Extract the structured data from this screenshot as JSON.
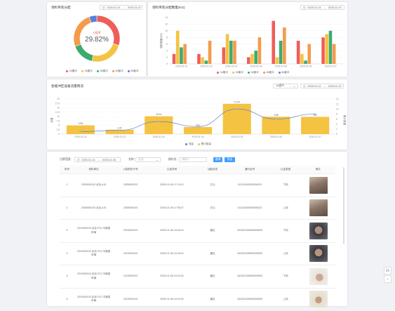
{
  "pie_card": {
    "title": "领料吊装分配",
    "date_start": "2025-01-01",
    "date_sep": "—",
    "date_end": "2025-01-07",
    "center_label": "分配率",
    "center_value": "29.82%",
    "legend": [
      "1#缓冲",
      "2#缓冲",
      "3#缓冲",
      "4#缓冲",
      "5#缓冲"
    ],
    "colors": [
      "#ee5f5b",
      "#f5c342",
      "#3eab6e",
      "#f49b4a",
      "#5a7fd6"
    ]
  },
  "bar_card": {
    "title": "领料吊装分配数量(KG)",
    "date_start": "2025-01-01",
    "date_sep": "—",
    "date_end": "2025-01-07",
    "ylabel": "领料数量(KG)"
  },
  "line_card": {
    "title": "各缓冲区设备流量情况",
    "select_value": "1#缓冲",
    "date_start": "2025-01-01",
    "date_sep": "—",
    "date_end": "2025-01-07",
    "y_left_label": "流量",
    "y_right_label": "累计数量"
  },
  "filter": {
    "range_label": "日期范围：",
    "date_start": "2025-01-01",
    "date_sep": "—",
    "date_end": "2025-01-08",
    "name_label": "名称：",
    "name_placeholder": "全部",
    "person_label": "操作员：",
    "person_placeholder": "请输入",
    "search_btn": "查询",
    "export_btn": "导出"
  },
  "table": {
    "headers": [
      "序号",
      "领料单位",
      "人脸抓拍卡号",
      "认证时间",
      "功能状态",
      "通行证号",
      "认证类型",
      "照片"
    ],
    "rows": [
      {
        "no": "1",
        "unit": "2305000103 北京 p15",
        "card": "2305000103",
        "time": "2025-01-05 17:14:13",
        "status": "已认",
        "pass": "111111000000006322",
        "type": "下岗",
        "photo": "a"
      },
      {
        "no": "2",
        "unit": "2305000103 北京 p15",
        "card": "2305000103",
        "time": "2025-01-05 17:05:27",
        "status": "已认",
        "pass": "111111000000006322",
        "type": "上岗",
        "photo": "a"
      },
      {
        "no": "3",
        "unit": "2310000103 北京-P12 平衡梁车辆",
        "card": "2310000103",
        "time": "2025-01-06 10:40:14",
        "status": "通过",
        "pass": "342422199605026993",
        "type": "下岗",
        "photo": "b"
      },
      {
        "no": "4",
        "unit": "2310000103 北京-P12 平衡梁车辆",
        "card": "2310000103",
        "time": "2025-01-06 10:40:14",
        "status": "通过",
        "pass": "342422199605026993",
        "type": "上岗",
        "photo": "b"
      },
      {
        "no": "5",
        "unit": "2310000103 北京-P12 平衡梁车辆",
        "card": "2310000103",
        "time": "2025-01-06 10:10:32",
        "status": "通过",
        "pass": "342422199605026993",
        "type": "下岗",
        "photo": "c"
      },
      {
        "no": "6",
        "unit": "2310000103 北京-P12 平衡梁车辆",
        "card": "2310000103",
        "time": "2025-01-06 10:10:32",
        "status": "通过",
        "pass": "342422199605026993",
        "type": "上岗",
        "photo": "d"
      }
    ]
  },
  "chart_data": [
    {
      "type": "pie",
      "title": "领料吊装分配",
      "categories": [
        "1#缓冲",
        "2#缓冲",
        "3#缓冲",
        "4#缓冲",
        "5#缓冲"
      ],
      "values": [
        29.82,
        23.5,
        16.2,
        25.1,
        5.38
      ]
    },
    {
      "type": "bar",
      "title": "领料吊装分配数量(KG)",
      "categories": [
        "2025-01-01",
        "2025-01-02",
        "2025-01-03",
        "2025-01-04",
        "2025-01-05",
        "2025-01-06",
        "2025-01-07"
      ],
      "ylabel": "领料数量(KG)",
      "ylim": [
        0,
        14
      ],
      "yticks": [
        0,
        2,
        4,
        6,
        8,
        10,
        12,
        14
      ],
      "series": [
        {
          "name": "1#缓冲",
          "values": [
            3,
            3,
            5,
            2,
            13,
            7,
            8
          ]
        },
        {
          "name": "2#缓冲",
          "values": [
            10,
            2,
            9,
            3,
            2,
            3,
            9
          ]
        },
        {
          "name": "3#缓冲",
          "values": [
            5,
            1,
            7,
            4,
            7,
            1,
            10
          ]
        },
        {
          "name": "4#缓冲",
          "values": [
            6,
            7,
            7,
            8,
            11,
            6,
            6
          ]
        },
        {
          "name": "5#缓冲",
          "values": [
            0,
            0,
            0,
            0,
            0,
            0,
            0
          ]
        }
      ]
    },
    {
      "type": "bar",
      "title": "各缓冲区设备流量情况",
      "categories": [
        "2025-01-01",
        "2025-01-02",
        "2025-01-03",
        "2025-01-04",
        "2025-01-05",
        "2025-01-06",
        "2025-01-07"
      ],
      "ylim": [
        0,
        20
      ],
      "yticks": [
        0,
        2.5,
        5,
        7.5,
        10,
        12.5,
        15,
        17.5,
        20
      ],
      "y2lim": [
        0,
        14
      ],
      "y2ticks": [
        0,
        2,
        4,
        6,
        8,
        10,
        12,
        14
      ],
      "legend": [
        "流量",
        "累计数量"
      ],
      "series": [
        {
          "name": "流量",
          "kind": "bar",
          "values": [
            4.95,
            2.47,
            10.14,
            4.01,
            17.24,
            9.89,
            9.8
          ],
          "labels": [
            "4.95",
            "2.47",
            "10.14",
            "4.01",
            "17.24",
            "9.89",
            "9.8"
          ]
        },
        {
          "name": "累计数量",
          "kind": "line",
          "values": [
            1,
            1.5,
            5,
            3,
            10,
            6,
            8
          ]
        }
      ]
    }
  ]
}
